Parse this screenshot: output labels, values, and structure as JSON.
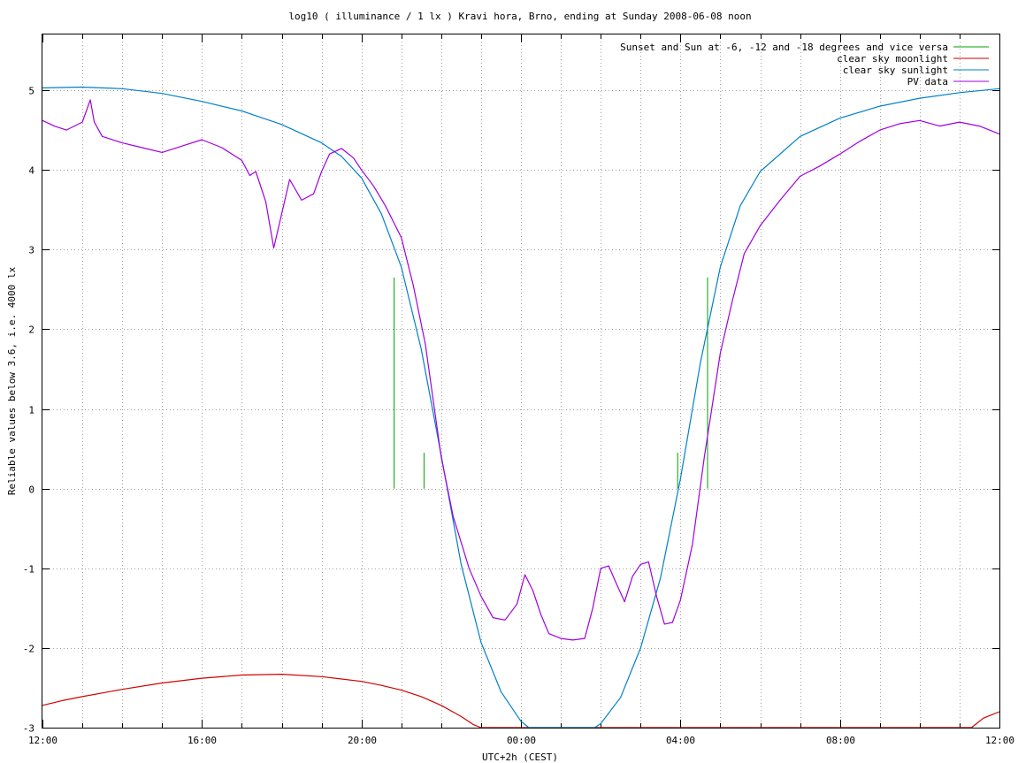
{
  "chart_data": {
    "type": "line",
    "title": "log10 ( illuminance / 1 lx ) Kravi hora, Brno, ending at Sunday 2008-06-08 noon",
    "xlabel": "UTC+2h (CEST)",
    "ylabel": "Reliable values below 3.6, i.e. 4000 lx",
    "xlim": [
      12,
      36
    ],
    "ylim": [
      -3,
      5.7
    ],
    "x_unit": "hours of day (12 = 12:00, 36 = next day 12:00)",
    "x_ticks": [
      {
        "value": 12,
        "label": "12:00"
      },
      {
        "value": 16,
        "label": "16:00"
      },
      {
        "value": 20,
        "label": "20:00"
      },
      {
        "value": 24,
        "label": "00:00"
      },
      {
        "value": 28,
        "label": "04:00"
      },
      {
        "value": 32,
        "label": "08:00"
      },
      {
        "value": 36,
        "label": "12:00"
      }
    ],
    "x_minor_step": 1,
    "y_ticks": [
      {
        "value": -3,
        "label": "-3"
      },
      {
        "value": -2,
        "label": "-2"
      },
      {
        "value": -1,
        "label": "-1"
      },
      {
        "value": 0,
        "label": "0"
      },
      {
        "value": 1,
        "label": "1"
      },
      {
        "value": 2,
        "label": "2"
      },
      {
        "value": 3,
        "label": "3"
      },
      {
        "value": 4,
        "label": "4"
      },
      {
        "value": 5,
        "label": "5"
      }
    ],
    "grid": true,
    "legend_position": "top-right",
    "series": [
      {
        "name": "Sunset and Sun at -6, -12 and -18 degrees and vice versa",
        "color": "#00a000",
        "style": "impulses",
        "points": [
          [
            20.82,
            2.65
          ],
          [
            21.57,
            0.45
          ],
          [
            22.53,
            0
          ],
          [
            26.97,
            0
          ],
          [
            27.93,
            0.45
          ],
          [
            28.68,
            2.65
          ]
        ]
      },
      {
        "name": "clear sky moonlight",
        "color": "#d00000",
        "style": "line",
        "points": [
          [
            12.0,
            -2.72
          ],
          [
            12.5,
            -2.66
          ],
          [
            13.0,
            -2.61
          ],
          [
            14.0,
            -2.52
          ],
          [
            15.0,
            -2.44
          ],
          [
            16.0,
            -2.38
          ],
          [
            17.0,
            -2.34
          ],
          [
            18.0,
            -2.33
          ],
          [
            19.0,
            -2.36
          ],
          [
            20.0,
            -2.42
          ],
          [
            20.5,
            -2.47
          ],
          [
            21.0,
            -2.53
          ],
          [
            21.5,
            -2.61
          ],
          [
            22.0,
            -2.72
          ],
          [
            22.5,
            -2.86
          ],
          [
            22.8,
            -2.96
          ],
          [
            23.0,
            -3.0
          ],
          [
            35.3,
            -3.0
          ],
          [
            35.6,
            -2.88
          ],
          [
            36.0,
            -2.8
          ]
        ]
      },
      {
        "name": "clear sky sunlight",
        "color": "#0080c8",
        "style": "line",
        "points": [
          [
            12.0,
            5.03
          ],
          [
            13.0,
            5.04
          ],
          [
            14.0,
            5.02
          ],
          [
            15.0,
            4.96
          ],
          [
            16.0,
            4.86
          ],
          [
            17.0,
            4.74
          ],
          [
            18.0,
            4.57
          ],
          [
            19.0,
            4.34
          ],
          [
            19.5,
            4.17
          ],
          [
            20.0,
            3.9
          ],
          [
            20.5,
            3.45
          ],
          [
            21.0,
            2.78
          ],
          [
            21.5,
            1.75
          ],
          [
            22.0,
            0.42
          ],
          [
            22.5,
            -0.95
          ],
          [
            23.0,
            -1.93
          ],
          [
            23.5,
            -2.55
          ],
          [
            24.0,
            -2.92
          ],
          [
            24.2,
            -3.0
          ],
          [
            25.85,
            -3.0
          ],
          [
            26.0,
            -2.95
          ],
          [
            26.5,
            -2.62
          ],
          [
            27.0,
            -2.0
          ],
          [
            27.5,
            -1.12
          ],
          [
            28.0,
            0.12
          ],
          [
            28.5,
            1.58
          ],
          [
            29.0,
            2.78
          ],
          [
            29.5,
            3.55
          ],
          [
            30.0,
            3.98
          ],
          [
            31.0,
            4.42
          ],
          [
            32.0,
            4.65
          ],
          [
            33.0,
            4.8
          ],
          [
            34.0,
            4.9
          ],
          [
            35.0,
            4.97
          ],
          [
            36.0,
            5.02
          ]
        ]
      },
      {
        "name": "PV data",
        "color": "#a000e0",
        "style": "line",
        "points": [
          [
            12.0,
            4.62
          ],
          [
            12.3,
            4.55
          ],
          [
            12.6,
            4.5
          ],
          [
            13.0,
            4.6
          ],
          [
            13.2,
            4.88
          ],
          [
            13.3,
            4.6
          ],
          [
            13.5,
            4.42
          ],
          [
            14.0,
            4.34
          ],
          [
            14.5,
            4.28
          ],
          [
            15.0,
            4.22
          ],
          [
            15.5,
            4.3
          ],
          [
            16.0,
            4.38
          ],
          [
            16.5,
            4.28
          ],
          [
            17.0,
            4.12
          ],
          [
            17.2,
            3.93
          ],
          [
            17.35,
            3.98
          ],
          [
            17.6,
            3.6
          ],
          [
            17.8,
            3.02
          ],
          [
            18.0,
            3.45
          ],
          [
            18.2,
            3.88
          ],
          [
            18.5,
            3.62
          ],
          [
            18.8,
            3.7
          ],
          [
            19.0,
            3.98
          ],
          [
            19.2,
            4.2
          ],
          [
            19.5,
            4.27
          ],
          [
            19.8,
            4.15
          ],
          [
            20.0,
            4.0
          ],
          [
            20.3,
            3.8
          ],
          [
            20.6,
            3.55
          ],
          [
            21.0,
            3.15
          ],
          [
            21.3,
            2.55
          ],
          [
            21.6,
            1.82
          ],
          [
            22.0,
            0.4
          ],
          [
            22.3,
            -0.35
          ],
          [
            22.7,
            -1.0
          ],
          [
            23.0,
            -1.35
          ],
          [
            23.3,
            -1.62
          ],
          [
            23.6,
            -1.65
          ],
          [
            23.9,
            -1.45
          ],
          [
            24.1,
            -1.08
          ],
          [
            24.3,
            -1.28
          ],
          [
            24.5,
            -1.58
          ],
          [
            24.7,
            -1.82
          ],
          [
            25.0,
            -1.88
          ],
          [
            25.3,
            -1.9
          ],
          [
            25.6,
            -1.88
          ],
          [
            25.8,
            -1.5
          ],
          [
            26.0,
            -1.0
          ],
          [
            26.2,
            -0.97
          ],
          [
            26.4,
            -1.2
          ],
          [
            26.6,
            -1.42
          ],
          [
            26.8,
            -1.1
          ],
          [
            27.0,
            -0.95
          ],
          [
            27.2,
            -0.92
          ],
          [
            27.4,
            -1.35
          ],
          [
            27.6,
            -1.7
          ],
          [
            27.8,
            -1.68
          ],
          [
            28.0,
            -1.4
          ],
          [
            28.3,
            -0.7
          ],
          [
            28.6,
            0.4
          ],
          [
            29.0,
            1.7
          ],
          [
            29.3,
            2.35
          ],
          [
            29.6,
            2.95
          ],
          [
            30.0,
            3.3
          ],
          [
            30.5,
            3.62
          ],
          [
            31.0,
            3.92
          ],
          [
            31.5,
            4.05
          ],
          [
            32.0,
            4.2
          ],
          [
            32.5,
            4.36
          ],
          [
            33.0,
            4.5
          ],
          [
            33.5,
            4.58
          ],
          [
            34.0,
            4.62
          ],
          [
            34.5,
            4.55
          ],
          [
            35.0,
            4.6
          ],
          [
            35.5,
            4.55
          ],
          [
            36.0,
            4.45
          ]
        ]
      }
    ]
  }
}
